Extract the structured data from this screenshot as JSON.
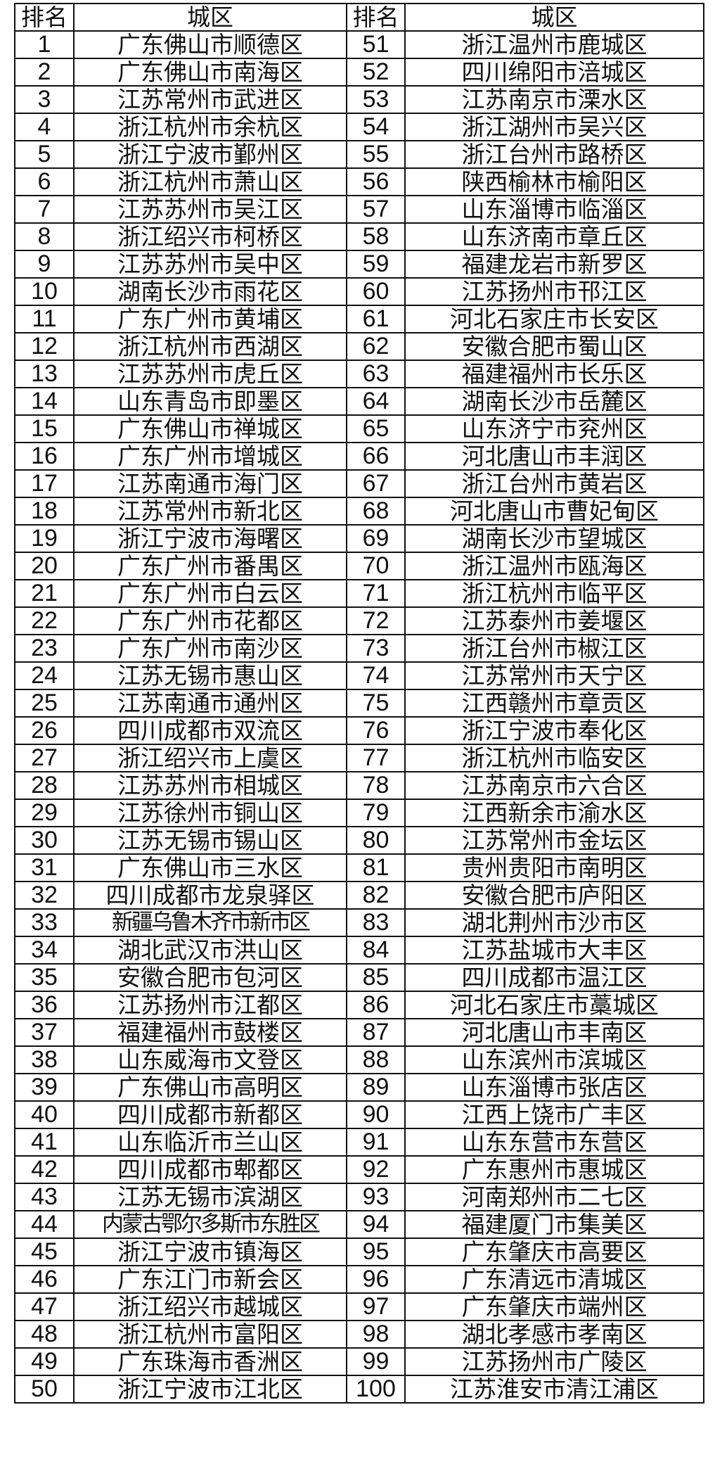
{
  "header": {
    "rank": "排名",
    "district": "城区",
    "rank2": "排名",
    "district2": "城区"
  },
  "left": [
    "广东佛山市顺德区",
    "广东佛山市南海区",
    "江苏常州市武进区",
    "浙江杭州市余杭区",
    "浙江宁波市鄞州区",
    "浙江杭州市萧山区",
    "江苏苏州市吴江区",
    "浙江绍兴市柯桥区",
    "江苏苏州市吴中区",
    "湖南长沙市雨花区",
    "广东广州市黄埔区",
    "浙江杭州市西湖区",
    "江苏苏州市虎丘区",
    "山东青岛市即墨区",
    "广东佛山市禅城区",
    "广东广州市增城区",
    "江苏南通市海门区",
    "江苏常州市新北区",
    "浙江宁波市海曙区",
    "广东广州市番禺区",
    "广东广州市白云区",
    "广东广州市花都区",
    "广东广州市南沙区",
    "江苏无锡市惠山区",
    "江苏南通市通州区",
    "四川成都市双流区",
    "浙江绍兴市上虞区",
    "江苏苏州市相城区",
    "江苏徐州市铜山区",
    "江苏无锡市锡山区",
    "广东佛山市三水区",
    "四川成都市龙泉驿区",
    "新疆乌鲁木齐市新市区",
    "湖北武汉市洪山区",
    "安徽合肥市包河区",
    "江苏扬州市江都区",
    "福建福州市鼓楼区",
    "山东威海市文登区",
    "广东佛山市高明区",
    "四川成都市新都区",
    "山东临沂市兰山区",
    "四川成都市郫都区",
    "江苏无锡市滨湖区",
    "内蒙古鄂尔多斯市东胜区",
    "浙江宁波市镇海区",
    "广东江门市新会区",
    "浙江绍兴市越城区",
    "浙江杭州市富阳区",
    "广东珠海市香洲区",
    "浙江宁波市江北区"
  ],
  "right": [
    "浙江温州市鹿城区",
    "四川绵阳市涪城区",
    "江苏南京市溧水区",
    "浙江湖州市吴兴区",
    "浙江台州市路桥区",
    "陕西榆林市榆阳区",
    "山东淄博市临淄区",
    "山东济南市章丘区",
    "福建龙岩市新罗区",
    "江苏扬州市邗江区",
    "河北石家庄市长安区",
    "安徽合肥市蜀山区",
    "福建福州市长乐区",
    "湖南长沙市岳麓区",
    "山东济宁市兖州区",
    "河北唐山市丰润区",
    "浙江台州市黄岩区",
    "河北唐山市曹妃甸区",
    "湖南长沙市望城区",
    "浙江温州市瓯海区",
    "浙江杭州市临平区",
    "江苏泰州市姜堰区",
    "浙江台州市椒江区",
    "江苏常州市天宁区",
    "江西赣州市章贡区",
    "浙江宁波市奉化区",
    "浙江杭州市临安区",
    "江苏南京市六合区",
    "江西新余市渝水区",
    "江苏常州市金坛区",
    "贵州贵阳市南明区",
    "安徽合肥市庐阳区",
    "湖北荆州市沙市区",
    "江苏盐城市大丰区",
    "四川成都市温江区",
    "河北石家庄市藁城区",
    "河北唐山市丰南区",
    "山东滨州市滨城区",
    "山东淄博市张店区",
    "江西上饶市广丰区",
    "山东东营市东营区",
    "广东惠州市惠城区",
    "河南郑州市二七区",
    "福建厦门市集美区",
    "广东肇庆市高要区",
    "广东清远市清城区",
    "广东肇庆市端州区",
    "湖北孝感市孝南区",
    "江苏扬州市广陵区",
    "江苏淮安市清江浦区"
  ]
}
